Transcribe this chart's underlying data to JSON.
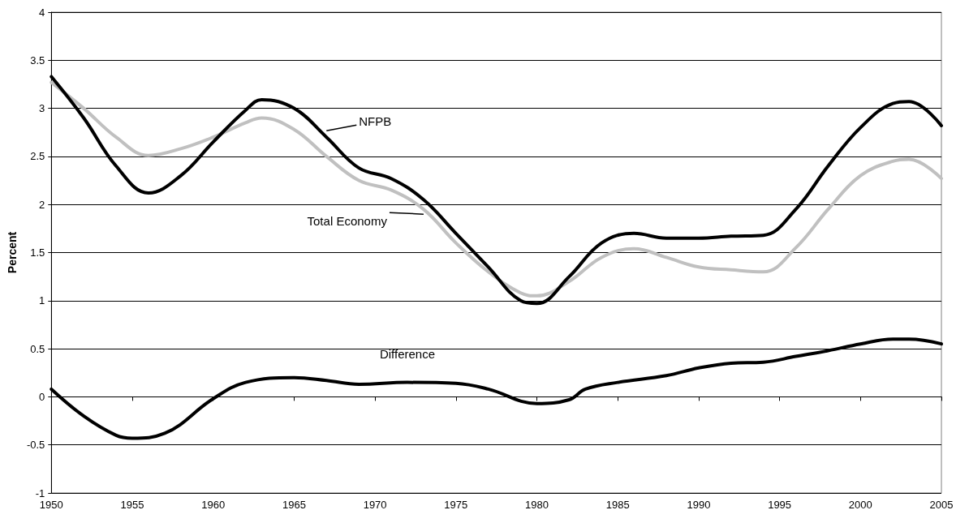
{
  "chart_data": {
    "type": "line",
    "ylabel": "Percent",
    "xlim": [
      1950,
      2005
    ],
    "xticks": [
      1950,
      1955,
      1960,
      1965,
      1970,
      1975,
      1980,
      1985,
      1990,
      1995,
      2000,
      2005
    ],
    "ylim": [
      -1,
      4
    ],
    "yticks": [
      -1,
      -0.5,
      0,
      0.5,
      1,
      1.5,
      2,
      2.5,
      3,
      3.5,
      4
    ],
    "grid": "y",
    "marker": "none",
    "line_style": "solid",
    "series": [
      {
        "name": "NFPB",
        "color": "#000000",
        "x": [
          1950,
          1952,
          1954,
          1956,
          1958,
          1960,
          1962,
          1963,
          1965,
          1967,
          1969,
          1971,
          1973,
          1975,
          1977,
          1979,
          1980,
          1982,
          1984,
          1986,
          1988,
          1990,
          1992,
          1994,
          1996,
          1998,
          2000,
          2002,
          2003,
          2005
        ],
        "values": [
          3.33,
          2.9,
          2.4,
          2.12,
          2.3,
          2.65,
          2.98,
          3.09,
          3.0,
          2.7,
          2.38,
          2.27,
          2.05,
          1.7,
          1.35,
          1.0,
          0.97,
          1.25,
          1.6,
          1.7,
          1.65,
          1.65,
          1.67,
          1.68,
          1.95,
          2.4,
          2.8,
          3.05,
          3.07,
          2.82
        ]
      },
      {
        "name": "Total Economy",
        "color": "#c0c0c0",
        "x": [
          1950,
          1952,
          1954,
          1956,
          1958,
          1960,
          1962,
          1963,
          1965,
          1967,
          1969,
          1971,
          1973,
          1975,
          1977,
          1979,
          1980,
          1982,
          1984,
          1986,
          1988,
          1990,
          1992,
          1994,
          1996,
          1998,
          2000,
          2002,
          2003,
          2005
        ],
        "values": [
          3.27,
          3.0,
          2.7,
          2.51,
          2.58,
          2.7,
          2.85,
          2.9,
          2.78,
          2.5,
          2.25,
          2.15,
          1.95,
          1.6,
          1.3,
          1.08,
          1.05,
          1.2,
          1.45,
          1.54,
          1.45,
          1.35,
          1.32,
          1.3,
          1.55,
          1.95,
          2.3,
          2.45,
          2.47,
          2.27
        ]
      },
      {
        "name": "Difference",
        "color": "#000000",
        "x": [
          1950,
          1952,
          1954,
          1955,
          1957,
          1960,
          1962,
          1965,
          1967,
          1969,
          1972,
          1975,
          1977,
          1980,
          1982,
          1983,
          1985,
          1988,
          1990,
          1992,
          1994,
          1996,
          1998,
          2000,
          2002,
          2003,
          2005
        ],
        "values": [
          0.08,
          -0.2,
          -0.4,
          -0.43,
          -0.38,
          -0.02,
          0.15,
          0.2,
          0.17,
          0.13,
          0.15,
          0.14,
          0.08,
          -0.07,
          -0.03,
          0.08,
          0.15,
          0.22,
          0.3,
          0.35,
          0.36,
          0.42,
          0.48,
          0.55,
          0.6,
          0.6,
          0.55
        ]
      }
    ]
  }
}
